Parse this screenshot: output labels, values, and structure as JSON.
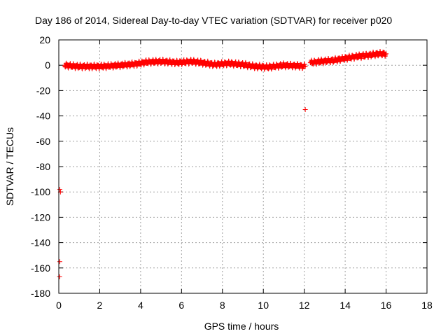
{
  "chart_data": {
    "type": "scatter",
    "title": "Day 186 of 2014, Sidereal Day-to-day VTEC variation (SDTVAR) for receiver p020",
    "xlabel": "GPS time / hours",
    "ylabel": "SDTVAR / TECUs",
    "xlim": [
      0,
      18
    ],
    "ylim": [
      -180,
      20
    ],
    "xticks": [
      0,
      2,
      4,
      6,
      8,
      10,
      12,
      14,
      16,
      18
    ],
    "yticks": [
      20,
      0,
      -20,
      -40,
      -60,
      -80,
      -100,
      -120,
      -140,
      -160,
      -180
    ],
    "grid": true,
    "marker": "+",
    "color": "#ff0000",
    "series": [
      {
        "name": "SDTVAR p020",
        "trend": {
          "x": [
            0.3,
            1.0,
            2.0,
            3.0,
            3.8,
            4.3,
            5.0,
            5.8,
            6.5,
            7.0,
            7.6,
            8.3,
            9.0,
            9.6,
            10.2,
            11.0,
            11.7,
            12.05,
            12.3,
            12.8,
            13.5,
            14.0,
            14.6,
            15.2,
            15.6,
            16.0
          ],
          "y": [
            0,
            -1,
            -1,
            0,
            1,
            2.5,
            3,
            2,
            3,
            2,
            0.5,
            1.5,
            0.5,
            -1,
            -1.5,
            0,
            -0.5,
            -1,
            2,
            3,
            4,
            5.5,
            7,
            8,
            9,
            9
          ]
        },
        "outliers": {
          "x": [
            12.05,
            0.05,
            0.08,
            0.05,
            0.04
          ],
          "y": [
            -35,
            -98,
            -100,
            -155,
            -167
          ]
        }
      }
    ]
  }
}
